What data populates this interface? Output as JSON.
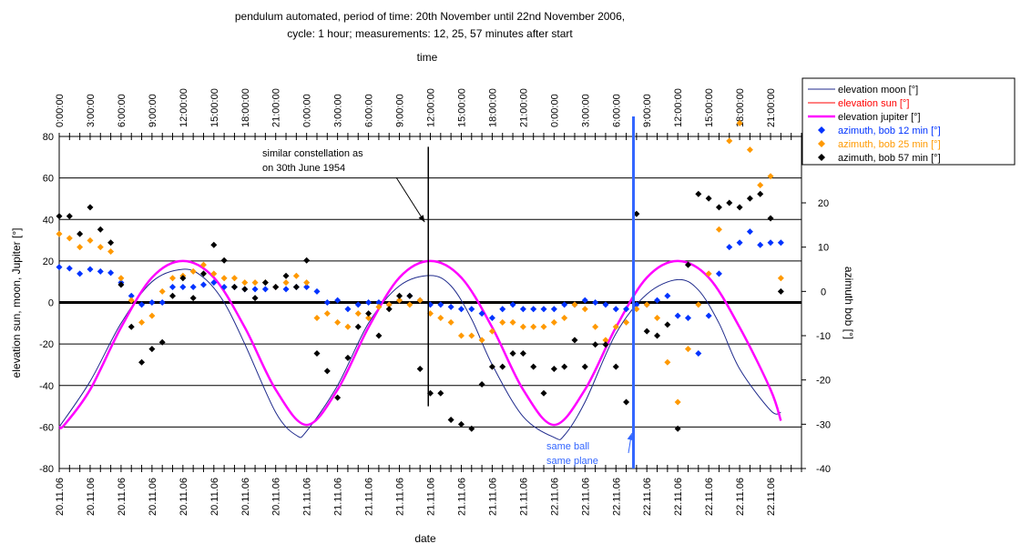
{
  "chart_data": {
    "type": "scatter",
    "title": "pendulum automated, period of time: 20th November until 22nd November 2006,",
    "subtitle": "cycle: 1 hour; measurements: 12, 25, 57 minutes after start",
    "top_axis_label": "time",
    "xlabel": "date",
    "ylabel": "elevation sun, moon, Jupiter [°]",
    "y2label": "azimuth bob [°]",
    "x_range_hours": [
      0,
      72
    ],
    "ylim": [
      -80,
      80
    ],
    "y2lim": [
      -40,
      35
    ],
    "y_ticks": [
      -80,
      -60,
      -40,
      -20,
      0,
      20,
      40,
      60,
      80
    ],
    "y2_ticks": [
      -40,
      -30,
      -20,
      -10,
      0,
      10,
      20,
      30
    ],
    "grid": true,
    "legend_position": "top-right",
    "top_tick_hours": [
      0,
      3,
      6,
      9,
      12,
      15,
      18,
      21,
      24,
      27,
      30,
      33,
      36,
      39,
      42,
      45,
      48,
      51,
      54,
      57,
      60,
      63,
      66,
      69
    ],
    "top_tick_labels": [
      "0:00:00",
      "3:00:00",
      "6:00:00",
      "9:00:00",
      "12:00:00",
      "15:00:00",
      "18:00:00",
      "21:00:00",
      "0:00:00",
      "3:00:00",
      "6:00:00",
      "9:00:00",
      "12:00:00",
      "15:00:00",
      "18:00:00",
      "21:00:00",
      "0:00:00",
      "3:00:00",
      "6:00:00",
      "9:00:00",
      "12:00:00",
      "15:00:00",
      "18:00:00",
      "21:00:00"
    ],
    "bottom_tick_hours": [
      0,
      3,
      6,
      9,
      12,
      15,
      18,
      21,
      24,
      27,
      30,
      33,
      36,
      39,
      42,
      45,
      48,
      51,
      54,
      57,
      60,
      63,
      66,
      69
    ],
    "bottom_tick_labels": [
      "20.11.06",
      "20.11.06",
      "20.11.06",
      "20.11.06",
      "20.11.06",
      "20.11.06",
      "20.11.06",
      "20.11.06",
      "21.11.06",
      "21.11.06",
      "21.11.06",
      "21.11.06",
      "21.11.06",
      "21.11.06",
      "21.11.06",
      "21.11.06",
      "22.11.06",
      "22.11.06",
      "22.11.06",
      "22.11.06",
      "22.11.06",
      "22.11.06",
      "22.11.06",
      "22.11.06"
    ],
    "series": [
      {
        "name": "elevation moon [°]",
        "axis": "left",
        "kind": "line",
        "color": "#1f2a8c",
        "width": 1,
        "x": [
          0,
          3,
          6,
          9,
          12,
          14,
          16,
          18,
          21,
          23,
          24,
          27,
          30,
          33,
          36,
          38,
          40,
          42,
          45,
          48,
          49,
          51,
          54,
          57,
          60,
          62,
          64,
          66,
          69,
          70
        ],
        "y": [
          -60,
          -38,
          -10,
          10,
          16,
          12,
          0,
          -20,
          -53,
          -64,
          -62,
          -40,
          -10,
          8,
          13,
          8,
          -8,
          -30,
          -55,
          -65,
          -64,
          -48,
          -15,
          4,
          11,
          6,
          -10,
          -32,
          -52,
          -53
        ]
      },
      {
        "name": "elevation sun [°]",
        "axis": "left",
        "kind": "line",
        "color": "#ff0000",
        "width": 1,
        "x": [],
        "y": []
      },
      {
        "name": "elevation jupiter [°]",
        "axis": "left",
        "kind": "line",
        "color": "#ff00ff",
        "width": 2.5,
        "x": [
          0,
          0.5,
          3,
          6,
          9,
          12,
          15,
          18,
          21,
          24,
          27,
          30,
          33,
          36,
          39,
          42,
          45,
          48,
          51,
          54,
          57,
          60,
          63,
          66,
          69,
          70
        ],
        "y": [
          -60,
          -59,
          -42,
          -12,
          12,
          20,
          12,
          -12,
          -42,
          -59,
          -42,
          -12,
          12,
          20,
          12,
          -12,
          -42,
          -59,
          -42,
          -12,
          12,
          20,
          12,
          -12,
          -42,
          -57
        ]
      },
      {
        "name": "azimuth, bob 12 min [°]",
        "axis": "right",
        "kind": "scatter",
        "color": "#0033ff",
        "x": [
          0,
          1,
          2,
          3,
          4,
          5,
          6,
          7,
          8,
          9,
          10,
          11,
          12,
          13,
          14,
          15,
          16,
          17,
          18,
          19,
          20,
          21,
          22,
          23,
          24,
          25,
          26,
          27,
          28,
          29,
          30,
          31,
          32,
          33,
          34,
          35,
          36,
          37,
          38,
          39,
          40,
          41,
          42,
          43,
          44,
          45,
          46,
          47,
          48,
          49,
          50,
          51,
          52,
          53,
          54,
          55,
          56,
          57,
          58,
          59,
          60,
          61,
          62,
          63,
          64,
          65,
          66,
          67,
          68,
          69,
          70
        ],
        "y": [
          5.5,
          5.2,
          4,
          5,
          4.5,
          4.2,
          2,
          -1,
          -3,
          -2.5,
          -2.5,
          1,
          1,
          1,
          1.5,
          2,
          1,
          1,
          0.5,
          0.5,
          0.5,
          1,
          0.5,
          1,
          1,
          0,
          -2.5,
          -2,
          -4,
          -3,
          -2.5,
          -2.5,
          -3,
          -2,
          -1,
          -2,
          -3,
          -3,
          -3.5,
          -4,
          -4,
          -5,
          -6,
          -4,
          -3,
          -4,
          -4,
          -4,
          -4,
          -3,
          -3,
          -2,
          -2.5,
          -3,
          -4,
          -4,
          -3,
          -3,
          -2,
          -1,
          -5.5,
          -6,
          -14,
          -5.5,
          4,
          10,
          11,
          13.5,
          10.5,
          11,
          11
        ]
      },
      {
        "name": "azimuth, bob 25 min [°]",
        "axis": "right",
        "kind": "scatter",
        "color": "#ff9900",
        "x": [
          0,
          1,
          2,
          3,
          4,
          5,
          6,
          7,
          8,
          9,
          10,
          11,
          12,
          13,
          14,
          15,
          16,
          17,
          18,
          19,
          20,
          21,
          22,
          23,
          24,
          25,
          26,
          27,
          28,
          29,
          30,
          31,
          32,
          33,
          34,
          35,
          36,
          37,
          38,
          39,
          40,
          41,
          42,
          43,
          44,
          45,
          46,
          47,
          48,
          49,
          50,
          51,
          52,
          53,
          54,
          55,
          56,
          57,
          58,
          59,
          60,
          61,
          62,
          63,
          64,
          65,
          66,
          67,
          68,
          69,
          70
        ],
        "y": [
          13,
          12,
          10,
          11.5,
          10,
          9,
          3,
          -2,
          -7,
          -5.5,
          0,
          3,
          3.5,
          4.5,
          6,
          4,
          3,
          3,
          2,
          2,
          2,
          1,
          2,
          3.5,
          2,
          -6,
          -5,
          -7,
          -8,
          -5,
          -6,
          -3.5,
          -3,
          -2,
          -3,
          -2,
          -5,
          -6,
          -7,
          -10,
          -10,
          -11,
          -9,
          -7,
          -7,
          -8,
          -8,
          -8,
          -7,
          -6,
          -3,
          -4,
          -8,
          -11,
          -8,
          -7,
          -4,
          -3,
          -6,
          -16,
          -25,
          -13,
          -3,
          4,
          14,
          34,
          38,
          32,
          24,
          26,
          3
        ]
      },
      {
        "name": "azimuth, bob 57 min [°]",
        "axis": "right",
        "kind": "scatter",
        "color": "#000000",
        "x": [
          0,
          1,
          2,
          3,
          4,
          5,
          6,
          7,
          8,
          9,
          10,
          11,
          12,
          13,
          14,
          15,
          16,
          17,
          18,
          19,
          20,
          21,
          22,
          23,
          24,
          25,
          26,
          27,
          28,
          29,
          30,
          31,
          32,
          33,
          34,
          35,
          36,
          37,
          38,
          39,
          40,
          41,
          42,
          43,
          44,
          45,
          46,
          47,
          48,
          49,
          50,
          51,
          52,
          53,
          54,
          55,
          56,
          57,
          58,
          59,
          60,
          61,
          62,
          63,
          64,
          65,
          66,
          67,
          68,
          69,
          70
        ],
        "y": [
          17,
          17,
          13,
          19,
          14,
          11,
          1.5,
          -8,
          -16,
          -13,
          -11.5,
          -1,
          3,
          -1.5,
          4,
          10.5,
          7,
          1,
          0.5,
          -1.5,
          2,
          1,
          3.5,
          1,
          7,
          -14,
          -18,
          -24,
          -15,
          -8,
          -5,
          -10,
          -4,
          -1,
          -1,
          -17.5,
          -23,
          -23,
          -29,
          -30,
          -31,
          -21,
          -17,
          -17,
          -14,
          -14,
          -17,
          -23,
          -17.5,
          -17,
          -11,
          -17,
          -12,
          -12,
          -17,
          -25,
          17.5,
          -9,
          -10,
          -7.5,
          -31,
          6,
          22,
          21,
          19,
          20,
          19,
          21,
          22,
          16.5,
          0
        ]
      }
    ],
    "annotations": [
      {
        "text_lines": [
          "similar constellation as",
          "on 30th June 1954"
        ],
        "arrow_to": [
          35.8,
          37
        ],
        "line_x_hours": 35.8,
        "line_y": [
          -50,
          75
        ]
      },
      {
        "text_lines": [
          "same ball",
          "same plane"
        ],
        "arrow_to": [
          55.7,
          -63
        ],
        "line_x_hours": 55.7,
        "color": "#3366ff"
      }
    ]
  }
}
